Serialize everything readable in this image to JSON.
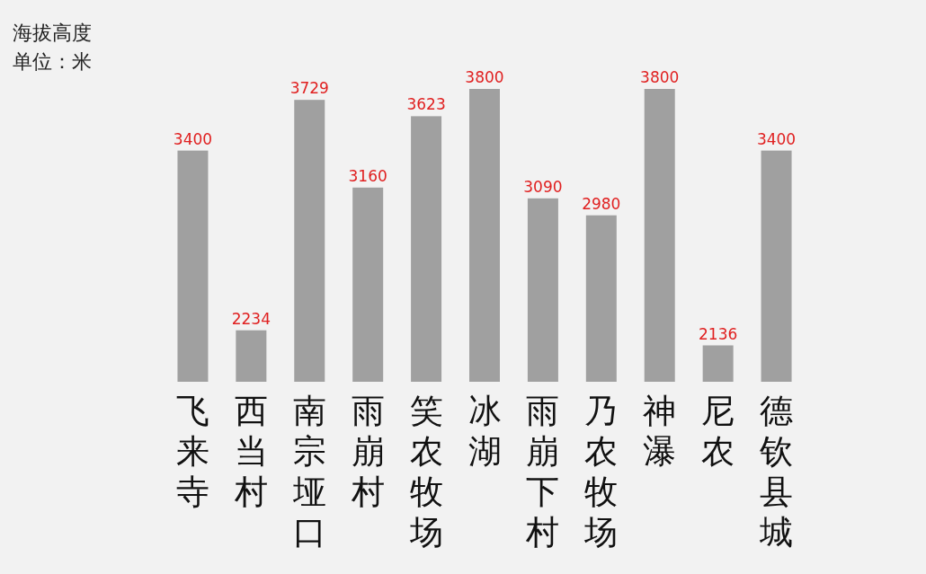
{
  "chart_data": {
    "type": "bar",
    "title": "海拔高度",
    "subtitle": "单位：米",
    "categories": [
      "飞来寺",
      "西当村",
      "南宗垭口",
      "雨崩村",
      "笑农牧场",
      "冰湖",
      "雨崩下村",
      "乃农牧场",
      "神瀑",
      "尼农",
      "德钦县城"
    ],
    "values": [
      3400,
      2234,
      3729,
      3160,
      3623,
      3800,
      3090,
      2980,
      3800,
      2136,
      3400
    ],
    "color": "#a0a0a0",
    "ylim": [
      1900,
      3800
    ],
    "data_labels": true
  }
}
